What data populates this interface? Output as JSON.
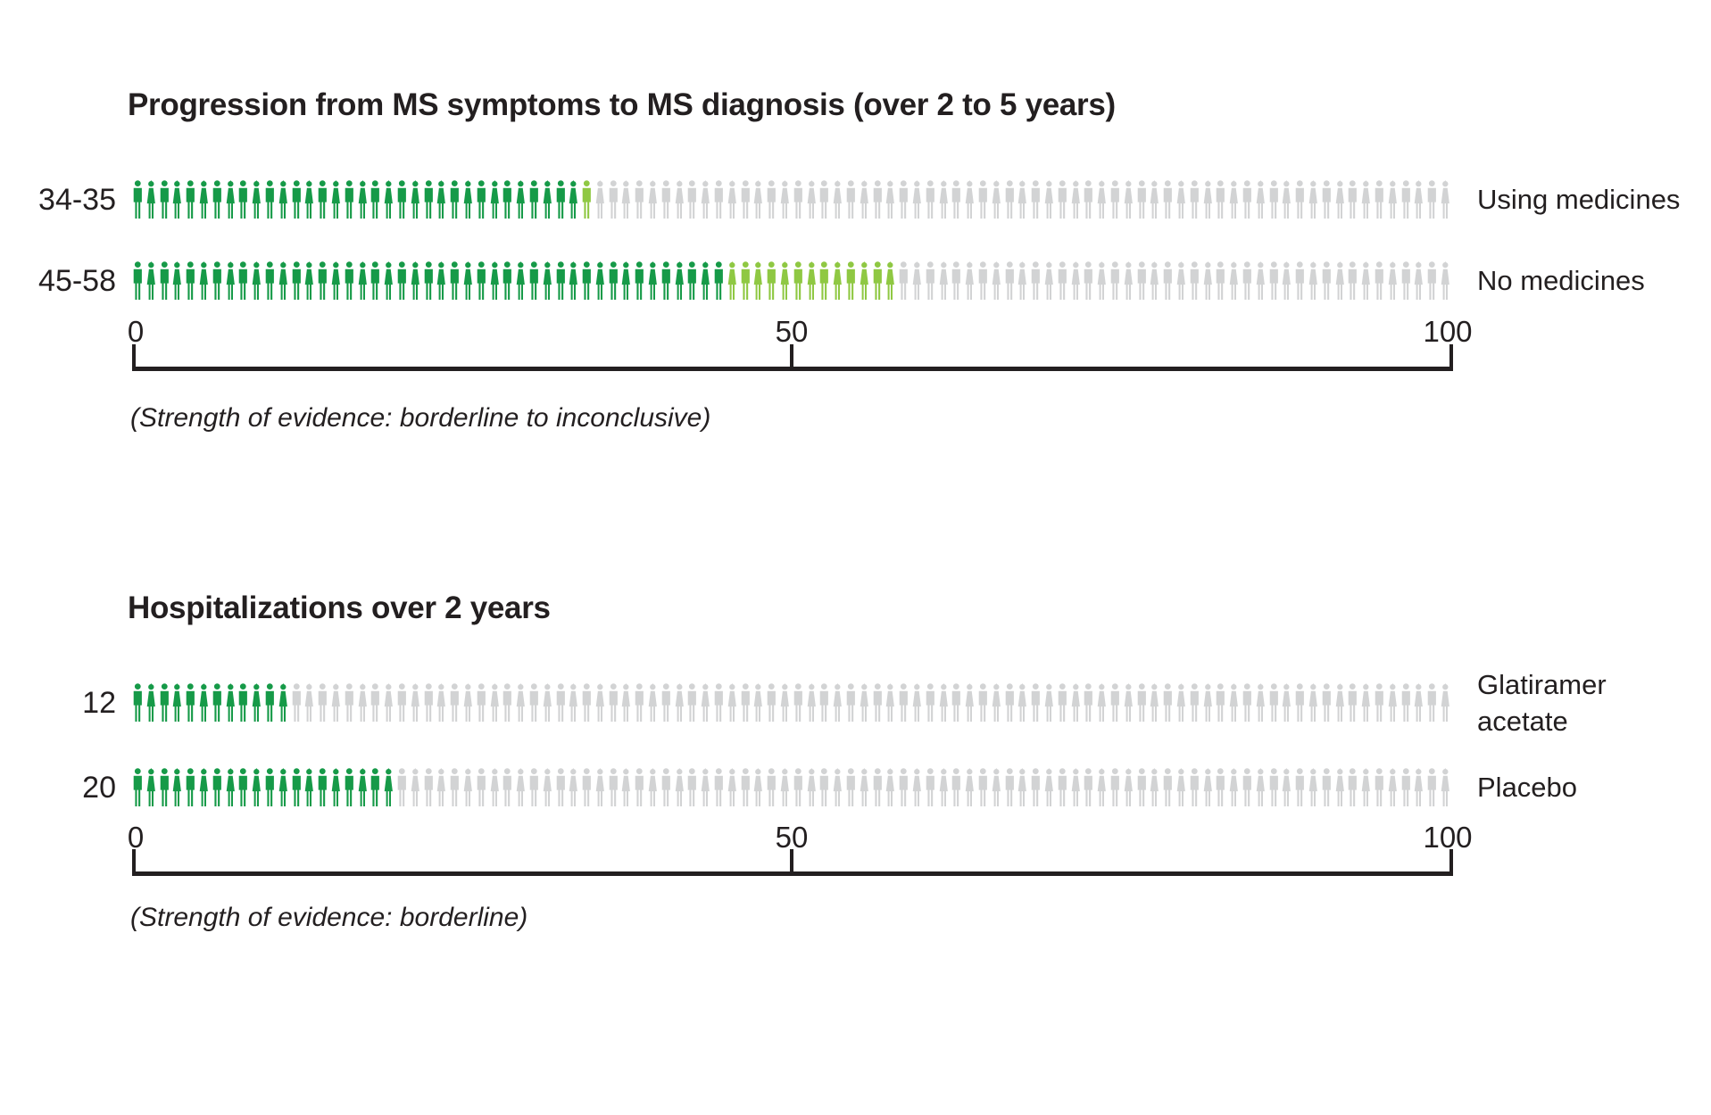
{
  "colors": {
    "dark_green": "#169a48",
    "light_green": "#8fc843",
    "gray": "#d2d3d4",
    "text": "#231f20"
  },
  "icons": {
    "male": "person-male-icon",
    "female": "person-female-icon"
  },
  "charts": [
    {
      "title": "Progression from MS symptoms to MS diagnosis (over 2 to 5 years)",
      "evidence_note": "(Strength of evidence: borderline to inconclusive)",
      "axis": {
        "ticks": [
          "0",
          "50",
          "100"
        ]
      },
      "rows": [
        {
          "value_label": "34-35",
          "group_label": "Using medicines",
          "dark": 34,
          "light": 1,
          "gray": 65
        },
        {
          "value_label": "45-58",
          "group_label": "No medicines",
          "dark": 45,
          "light": 13,
          "gray": 42
        }
      ]
    },
    {
      "title": "Hospitalizations over 2 years",
      "evidence_note": "(Strength of evidence: borderline)",
      "axis": {
        "ticks": [
          "0",
          "50",
          "100"
        ]
      },
      "rows": [
        {
          "value_label": "12",
          "group_label": "Glatiramer acetate",
          "dark": 12,
          "light": 0,
          "gray": 88
        },
        {
          "value_label": "20",
          "group_label": "Placebo",
          "dark": 20,
          "light": 0,
          "gray": 80
        }
      ]
    }
  ],
  "chart_data": [
    {
      "type": "bar",
      "variant": "icon-array-pictograph",
      "title": "Progression from MS symptoms to MS diagnosis (over 2 to 5 years)",
      "units": "people out of 100",
      "categories": [
        "Using medicines",
        "No medicines"
      ],
      "values_range": [
        [
          34,
          35
        ],
        [
          45,
          58
        ]
      ],
      "value_labels": [
        "34-35",
        "45-58"
      ],
      "icons_per_row": 100,
      "xlim": [
        0,
        100
      ],
      "x_ticks": [
        0,
        50,
        100
      ],
      "legend_position": "right",
      "grid": false,
      "note": "(Strength of evidence: borderline to inconclusive)"
    },
    {
      "type": "bar",
      "variant": "icon-array-pictograph",
      "title": "Hospitalizations over 2 years",
      "units": "people out of 100",
      "categories": [
        "Glatiramer acetate",
        "Placebo"
      ],
      "values": [
        12,
        20
      ],
      "value_labels": [
        "12",
        "20"
      ],
      "icons_per_row": 100,
      "xlim": [
        0,
        100
      ],
      "x_ticks": [
        0,
        50,
        100
      ],
      "legend_position": "right",
      "grid": false,
      "note": "(Strength of evidence: borderline)"
    }
  ]
}
